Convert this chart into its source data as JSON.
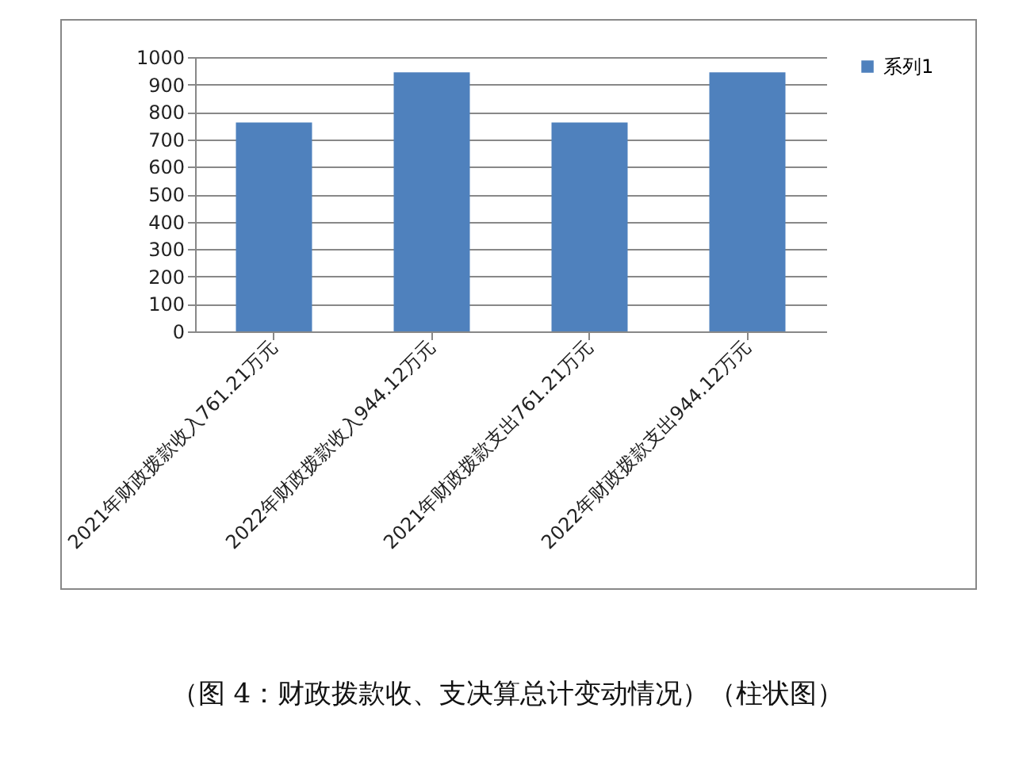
{
  "chart_data": {
    "type": "bar",
    "categories": [
      "2021年财政拨款收入761.21万元",
      "2022年财政拨款收入944.12万元",
      "2021年财政拨款支出761.21万元",
      "2022年财政拨款支出944.12万元"
    ],
    "series": [
      {
        "name": "系列1",
        "color": "#4f81bd",
        "values": [
          761.21,
          944.12,
          761.21,
          944.12
        ]
      }
    ],
    "ylim": [
      0,
      1000
    ],
    "yticks": [
      0,
      100,
      200,
      300,
      400,
      500,
      600,
      700,
      800,
      900,
      1000
    ],
    "grid": "y",
    "legend": "right",
    "annotations": [
      "（图 4：财政拨款收、支决算总计变动情况）（柱状图）"
    ]
  }
}
